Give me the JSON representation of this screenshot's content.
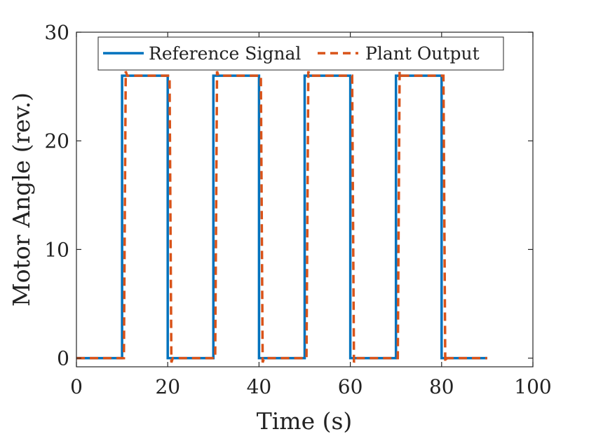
{
  "chart_data": {
    "type": "line",
    "xlabel": "Time (s)",
    "ylabel": "Motor Angle (rev.)",
    "xlim": [
      0,
      100
    ],
    "ylim": [
      -0.8,
      30
    ],
    "xticks": [
      "0",
      "20",
      "40",
      "60",
      "80",
      "100"
    ],
    "yticks": [
      "0",
      "10",
      "20",
      "30"
    ],
    "grid": false,
    "legend_position": "top",
    "series": [
      {
        "name": "Reference Signal",
        "color": "#0072BD",
        "style": "solid",
        "x": [
          0,
          10,
          10,
          20,
          20,
          30,
          30,
          40,
          40,
          50,
          50,
          60,
          60,
          70,
          70,
          80,
          80,
          90
        ],
        "y": [
          0,
          0,
          26,
          26,
          0,
          0,
          26,
          26,
          0,
          0,
          26,
          26,
          0,
          0,
          26,
          26,
          0,
          0
        ]
      },
      {
        "name": "Plant Output",
        "color": "#D95319",
        "style": "dashed",
        "x": [
          0,
          10.4,
          10.8,
          11.1,
          20.4,
          20.8,
          21.1,
          30.4,
          30.8,
          31.1,
          40.4,
          40.8,
          41.1,
          50.4,
          50.8,
          51.1,
          60.4,
          60.8,
          61.1,
          70.4,
          70.8,
          71.1,
          80.4,
          80.8,
          81.1,
          90
        ],
        "y": [
          0,
          0,
          26.4,
          26,
          26,
          -0.4,
          0,
          0,
          26.4,
          26,
          26,
          -0.4,
          0,
          0,
          26.4,
          26,
          26,
          -0.4,
          0,
          0,
          26.4,
          26,
          26,
          -0.4,
          0,
          0
        ]
      }
    ]
  }
}
